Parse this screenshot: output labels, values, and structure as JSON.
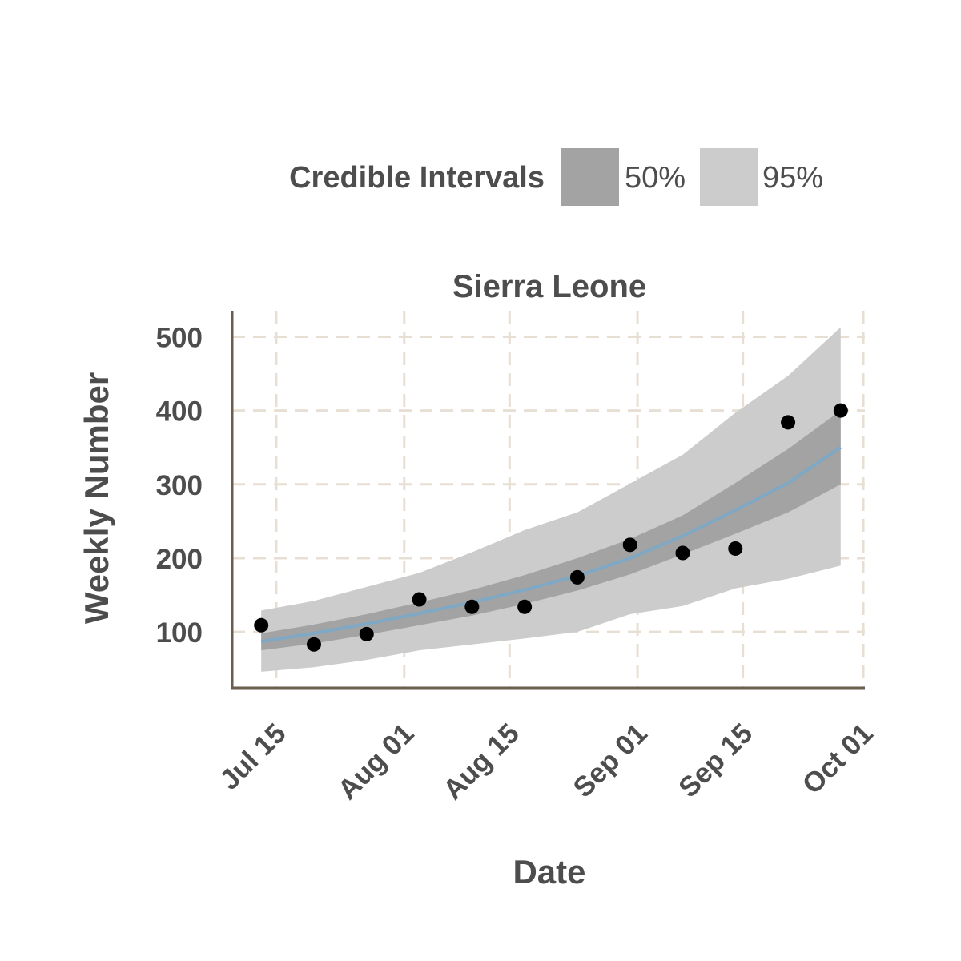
{
  "chart_data": {
    "type": "line",
    "title": "Sierra Leone",
    "xlabel": "Date",
    "ylabel": "Weekly Number",
    "legend": {
      "title": "Credible Intervals",
      "position": "top",
      "items": [
        {
          "label": "50%",
          "color": "#a3a3a3"
        },
        {
          "label": "95%",
          "color": "#cccccc"
        }
      ]
    },
    "xlim": [
      "2014-07-11",
      "2014-10-01"
    ],
    "ylim": [
      25,
      535
    ],
    "x_ticks": [
      {
        "date": "2014-07-15",
        "label": "Jul 15"
      },
      {
        "date": "2014-08-01",
        "label": "Aug 01"
      },
      {
        "date": "2014-08-15",
        "label": "Aug 15"
      },
      {
        "date": "2014-09-01",
        "label": "Sep 01"
      },
      {
        "date": "2014-09-15",
        "label": "Sep 15"
      },
      {
        "date": "2014-10-01",
        "label": "Oct 01"
      }
    ],
    "y_ticks": [
      100,
      200,
      300,
      400,
      500
    ],
    "grid": true,
    "observed": {
      "dates": [
        "2014-07-13",
        "2014-07-20",
        "2014-07-27",
        "2014-08-03",
        "2014-08-10",
        "2014-08-17",
        "2014-08-24",
        "2014-08-31",
        "2014-09-07",
        "2014-09-14",
        "2014-09-21",
        "2014-09-28"
      ],
      "values": [
        109,
        83,
        97,
        144,
        134,
        134,
        174,
        218,
        207,
        213,
        384,
        400
      ]
    },
    "model": {
      "dates": [
        "2014-07-13",
        "2014-07-20",
        "2014-07-27",
        "2014-08-03",
        "2014-08-10",
        "2014-08-17",
        "2014-08-24",
        "2014-08-31",
        "2014-09-07",
        "2014-09-14",
        "2014-09-21",
        "2014-09-28"
      ],
      "median": [
        87,
        98,
        111,
        125,
        140,
        157,
        176,
        200,
        230,
        265,
        302,
        350
      ],
      "ci50_low": [
        75,
        84,
        96,
        109,
        122,
        138,
        156,
        178,
        205,
        233,
        262,
        300
      ],
      "ci50_high": [
        98,
        110,
        124,
        140,
        157,
        177,
        200,
        226,
        258,
        302,
        348,
        400
      ],
      "ci95_low": [
        46,
        52,
        62,
        75,
        83,
        91,
        100,
        124,
        135,
        159,
        172,
        190
      ],
      "ci95_high": [
        129,
        142,
        161,
        180,
        208,
        238,
        262,
        301,
        340,
        397,
        447,
        513
      ]
    },
    "colors": {
      "ci50": "#a3a3a3",
      "ci95": "#cccccc",
      "median_line": "#7fa8c4",
      "points": "#000000",
      "axis": "#6b5e4f",
      "grid": "#e8dfd4",
      "text": "#4d4d4d"
    }
  }
}
